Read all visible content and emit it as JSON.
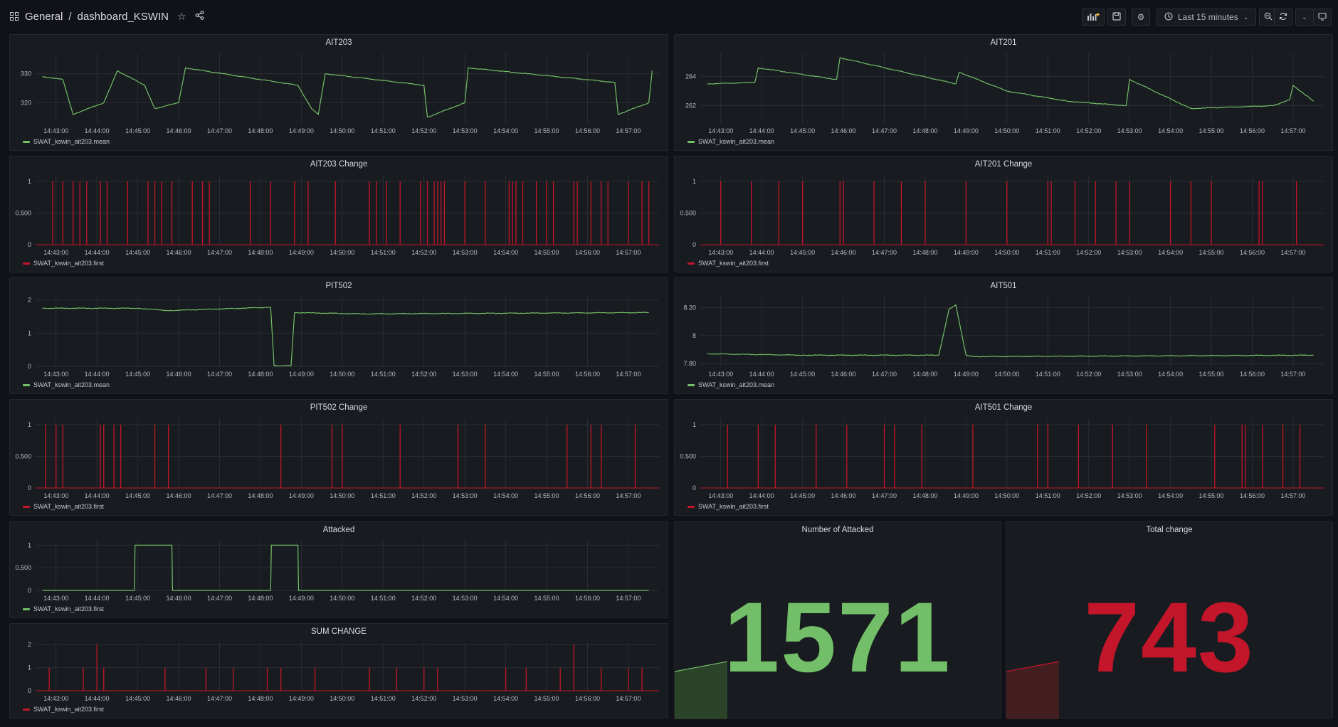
{
  "header": {
    "folder": "General",
    "separator": "/",
    "dashboard_title": "dashboard_KSWIN",
    "time_range": "Last 15 minutes"
  },
  "icons": {
    "grid": "dashboard-grid-icon",
    "star": "star-icon",
    "share": "share-icon",
    "add_panel": "add-panel-icon",
    "save": "save-icon",
    "settings": "gear-icon",
    "clock": "clock-icon",
    "zoom_out": "zoom-out-icon",
    "refresh": "refresh-icon",
    "tv": "tv-mode-icon"
  },
  "colors": {
    "green": "#73bf69",
    "red": "#c4162a",
    "stat_green": "#73bf69",
    "stat_red": "#c4162a"
  },
  "x_ticks": [
    "14:43:00",
    "14:44:00",
    "14:45:00",
    "14:46:00",
    "14:47:00",
    "14:48:00",
    "14:49:00",
    "14:50:00",
    "14:51:00",
    "14:52:00",
    "14:53:00",
    "14:54:00",
    "14:55:00",
    "14:56:00",
    "14:57:00"
  ],
  "panels": [
    {
      "id": "ait203",
      "title": "AIT203",
      "kind": "line",
      "color": "green",
      "legend": "SWAT_kswin_ait203.mean",
      "y_ticks": [
        "330",
        "320"
      ],
      "y_values": [
        330,
        320
      ],
      "ylim": [
        313,
        337
      ]
    },
    {
      "id": "ait201",
      "title": "AIT201",
      "kind": "line",
      "color": "green",
      "legend": "SWAT_kswin_ait203.mean",
      "y_ticks": [
        "264",
        "262"
      ],
      "y_values": [
        264,
        262
      ],
      "ylim": [
        260.8,
        265.6
      ]
    },
    {
      "id": "ait203c",
      "title": "AIT203 Change",
      "kind": "spikes",
      "color": "red",
      "legend": "SWAT_kswin_ait203.first",
      "y_ticks": [
        "1",
        "0.500",
        "0"
      ],
      "y_values": [
        1,
        0.5,
        0
      ],
      "ylim": [
        0,
        1.1
      ]
    },
    {
      "id": "ait201c",
      "title": "AIT201 Change",
      "kind": "spikes",
      "color": "red",
      "legend": "SWAT_kswin_ait203.first",
      "y_ticks": [
        "1",
        "0.500",
        "0"
      ],
      "y_values": [
        1,
        0.5,
        0
      ],
      "ylim": [
        0,
        1.1
      ]
    },
    {
      "id": "pit502",
      "title": "PIT502",
      "kind": "line",
      "color": "green",
      "legend": "SWAT_kswin_ait203.mean",
      "y_ticks": [
        "2",
        "1",
        "0"
      ],
      "y_values": [
        2,
        1,
        0
      ],
      "ylim": [
        0,
        2.1
      ]
    },
    {
      "id": "ait501",
      "title": "AIT501",
      "kind": "line",
      "color": "green",
      "legend": "SWAT_kswin_ait203.mean",
      "y_ticks": [
        "8.20",
        "8",
        "7.80"
      ],
      "y_values": [
        8.2,
        8,
        7.8
      ],
      "ylim": [
        7.78,
        8.28
      ]
    },
    {
      "id": "pit502c",
      "title": "PIT502 Change",
      "kind": "spikes",
      "color": "red",
      "legend": "SWAT_kswin_ait203.first",
      "y_ticks": [
        "1",
        "0.500",
        "0"
      ],
      "y_values": [
        1,
        0.5,
        0
      ],
      "ylim": [
        0,
        1.1
      ]
    },
    {
      "id": "ait501c",
      "title": "AIT501 Change",
      "kind": "spikes",
      "color": "red",
      "legend": "SWAT_kswin_ait203.first",
      "y_ticks": [
        "1",
        "0.500",
        "0"
      ],
      "y_values": [
        1,
        0.5,
        0
      ],
      "ylim": [
        0,
        1.1
      ]
    },
    {
      "id": "attacked",
      "title": "Attacked",
      "kind": "step",
      "color": "green",
      "legend": "SWAT_kswin_ait203.first",
      "y_ticks": [
        "1",
        "0.500",
        "0"
      ],
      "y_values": [
        1,
        0.5,
        0
      ],
      "ylim": [
        0,
        1.1
      ]
    },
    {
      "id": "sumchange",
      "title": "SUM CHANGE",
      "kind": "sum",
      "color": "red",
      "legend": "SWAT_kswin_ait203.first",
      "y_ticks": [
        "2",
        "1",
        "0"
      ],
      "y_values": [
        2,
        1,
        0
      ],
      "ylim": [
        0,
        2.1
      ]
    }
  ],
  "stats": [
    {
      "id": "num_attacked",
      "title": "Number of Attacked",
      "value": "1571",
      "color": "stat_green"
    },
    {
      "id": "total_change",
      "title": "Total change",
      "value": "743",
      "color": "stat_red"
    }
  ],
  "chart_data": [
    {
      "type": "line",
      "title": "AIT203",
      "x": [
        "14:42:40",
        "14:43:10",
        "14:43:25",
        "14:44:10",
        "14:44:30",
        "14:45:10",
        "14:45:25",
        "14:46:00",
        "14:46:10",
        "14:48:55",
        "14:49:15",
        "14:49:25",
        "14:49:35",
        "14:52:00",
        "14:52:05",
        "14:53:00",
        "14:53:05",
        "14:56:40",
        "14:56:45",
        "14:57:30",
        "14:57:35"
      ],
      "values": [
        329,
        328,
        316,
        320,
        331,
        326,
        318,
        320,
        332,
        326,
        318,
        316,
        330,
        326,
        315,
        320,
        332,
        327,
        316,
        320,
        331
      ]
    },
    {
      "type": "line",
      "title": "AIT201",
      "x": [
        "14:42:40",
        "14:43:50",
        "14:43:55",
        "14:45:50",
        "14:45:55",
        "14:48:45",
        "14:48:50",
        "14:50:00",
        "14:51:30",
        "14:52:55",
        "14:53:00",
        "14:54:30",
        "14:56:30",
        "14:56:55",
        "14:57:00",
        "14:57:30"
      ],
      "values": [
        263.5,
        263.6,
        264.6,
        263.8,
        265.3,
        263.5,
        264.3,
        263.0,
        262.3,
        262.0,
        263.8,
        261.8,
        262.0,
        262.4,
        263.4,
        262.3
      ]
    },
    {
      "type": "bar",
      "title": "AIT203 Change",
      "x": [
        "14:42:55",
        "14:43:10",
        "14:43:25",
        "14:43:35",
        "14:43:45",
        "14:44:05",
        "14:44:15",
        "14:44:45",
        "14:45:15",
        "14:45:25",
        "14:45:35",
        "14:45:50",
        "14:46:20",
        "14:46:35",
        "14:46:45",
        "14:47:45",
        "14:48:15",
        "14:48:50",
        "14:49:10",
        "14:49:50",
        "14:50:40",
        "14:50:50",
        "14:51:05",
        "14:51:25",
        "14:51:55",
        "14:52:05",
        "14:52:15",
        "14:52:20",
        "14:52:25",
        "14:52:30",
        "14:53:00",
        "14:53:30",
        "14:54:05",
        "14:54:10",
        "14:54:15",
        "14:54:25",
        "14:54:45",
        "14:55:00",
        "14:55:10",
        "14:55:40",
        "14:55:45",
        "14:56:05",
        "14:56:20",
        "14:56:30",
        "14:57:00",
        "14:57:20",
        "14:57:30"
      ],
      "values": [
        1,
        1,
        1,
        1,
        1,
        1,
        1,
        1,
        1,
        1,
        1,
        1,
        1,
        1,
        1,
        1,
        1,
        1,
        1,
        1,
        1,
        1,
        1,
        1,
        1,
        1,
        1,
        1,
        1,
        1,
        1,
        1,
        1,
        1,
        1,
        1,
        1,
        1,
        1,
        1,
        1,
        1,
        1,
        1,
        1,
        1,
        1
      ]
    },
    {
      "type": "bar",
      "title": "AIT201 Change",
      "x": [
        "14:43:00",
        "14:43:45",
        "14:44:25",
        "14:45:00",
        "14:45:55",
        "14:46:00",
        "14:46:45",
        "14:47:25",
        "14:48:00",
        "14:49:00",
        "14:50:00",
        "14:51:00",
        "14:51:05",
        "14:51:40",
        "14:52:10",
        "14:52:40",
        "14:53:00",
        "14:54:00",
        "14:54:30",
        "14:55:00",
        "14:56:10",
        "14:56:15",
        "14:57:05"
      ],
      "values": [
        1,
        1,
        1,
        1,
        1,
        1,
        1,
        1,
        1,
        1,
        1,
        1,
        1,
        1,
        1,
        1,
        1,
        1,
        1,
        1,
        1,
        1,
        1
      ]
    },
    {
      "type": "line",
      "title": "PIT502",
      "x": [
        "14:42:40",
        "14:45:00",
        "14:45:45",
        "14:48:15",
        "14:48:20",
        "14:48:45",
        "14:48:50",
        "14:50:30",
        "14:57:30"
      ],
      "values": [
        1.75,
        1.75,
        1.68,
        1.78,
        0.02,
        0.02,
        1.62,
        1.58,
        1.62
      ]
    },
    {
      "type": "line",
      "title": "AIT501",
      "x": [
        "14:42:40",
        "14:45:00",
        "14:48:20",
        "14:48:35",
        "14:48:45",
        "14:49:00",
        "14:49:15",
        "14:57:30"
      ],
      "values": [
        7.87,
        7.86,
        7.86,
        8.19,
        8.22,
        7.86,
        7.85,
        7.86
      ]
    },
    {
      "type": "bar",
      "title": "PIT502 Change",
      "x": [
        "14:42:45",
        "14:43:00",
        "14:43:10",
        "14:44:05",
        "14:44:10",
        "14:44:25",
        "14:44:35",
        "14:45:25",
        "14:45:45",
        "14:48:30",
        "14:49:45",
        "14:50:00",
        "14:51:25",
        "14:52:50",
        "14:53:30",
        "14:55:30",
        "14:56:05",
        "14:56:20",
        "14:57:10"
      ],
      "values": [
        1,
        1,
        1,
        1,
        1,
        1,
        1,
        1,
        1,
        1,
        1,
        1,
        1,
        1,
        1,
        1,
        1,
        1,
        1
      ]
    },
    {
      "type": "bar",
      "title": "AIT501 Change",
      "x": [
        "14:43:10",
        "14:43:55",
        "14:44:20",
        "14:45:20",
        "14:46:05",
        "14:47:00",
        "14:47:15",
        "14:47:55",
        "14:49:10",
        "14:50:45",
        "14:51:00",
        "14:51:45",
        "14:52:35",
        "14:53:25",
        "14:55:05",
        "14:55:45",
        "14:55:50",
        "14:56:15",
        "14:56:45",
        "14:57:10"
      ],
      "values": [
        1,
        1,
        1,
        1,
        1,
        1,
        1,
        1,
        1,
        1,
        1,
        1,
        1,
        1,
        1,
        1,
        1,
        1,
        1,
        1
      ]
    },
    {
      "type": "line",
      "title": "Attacked",
      "x": [
        "14:42:40",
        "14:44:55",
        "14:44:56",
        "14:45:50",
        "14:45:51",
        "14:48:15",
        "14:48:16",
        "14:48:55",
        "14:48:56",
        "14:57:30"
      ],
      "values": [
        0,
        0,
        1,
        1,
        0,
        0,
        1,
        1,
        0,
        0
      ]
    },
    {
      "type": "bar",
      "title": "SUM CHANGE",
      "x": [
        "14:42:50",
        "14:43:40",
        "14:44:00",
        "14:44:10",
        "14:45:40",
        "14:46:40",
        "14:47:20",
        "14:48:10",
        "14:48:30",
        "14:49:20",
        "14:50:40",
        "14:51:20",
        "14:52:00",
        "14:52:20",
        "14:54:00",
        "14:54:30",
        "14:55:20",
        "14:55:40",
        "14:56:20",
        "14:57:00",
        "14:57:20"
      ],
      "values": [
        1,
        1,
        2,
        1,
        1,
        1,
        1,
        1,
        1,
        1,
        1,
        1,
        1,
        1,
        1,
        1,
        1,
        2,
        1,
        1,
        1
      ]
    }
  ]
}
